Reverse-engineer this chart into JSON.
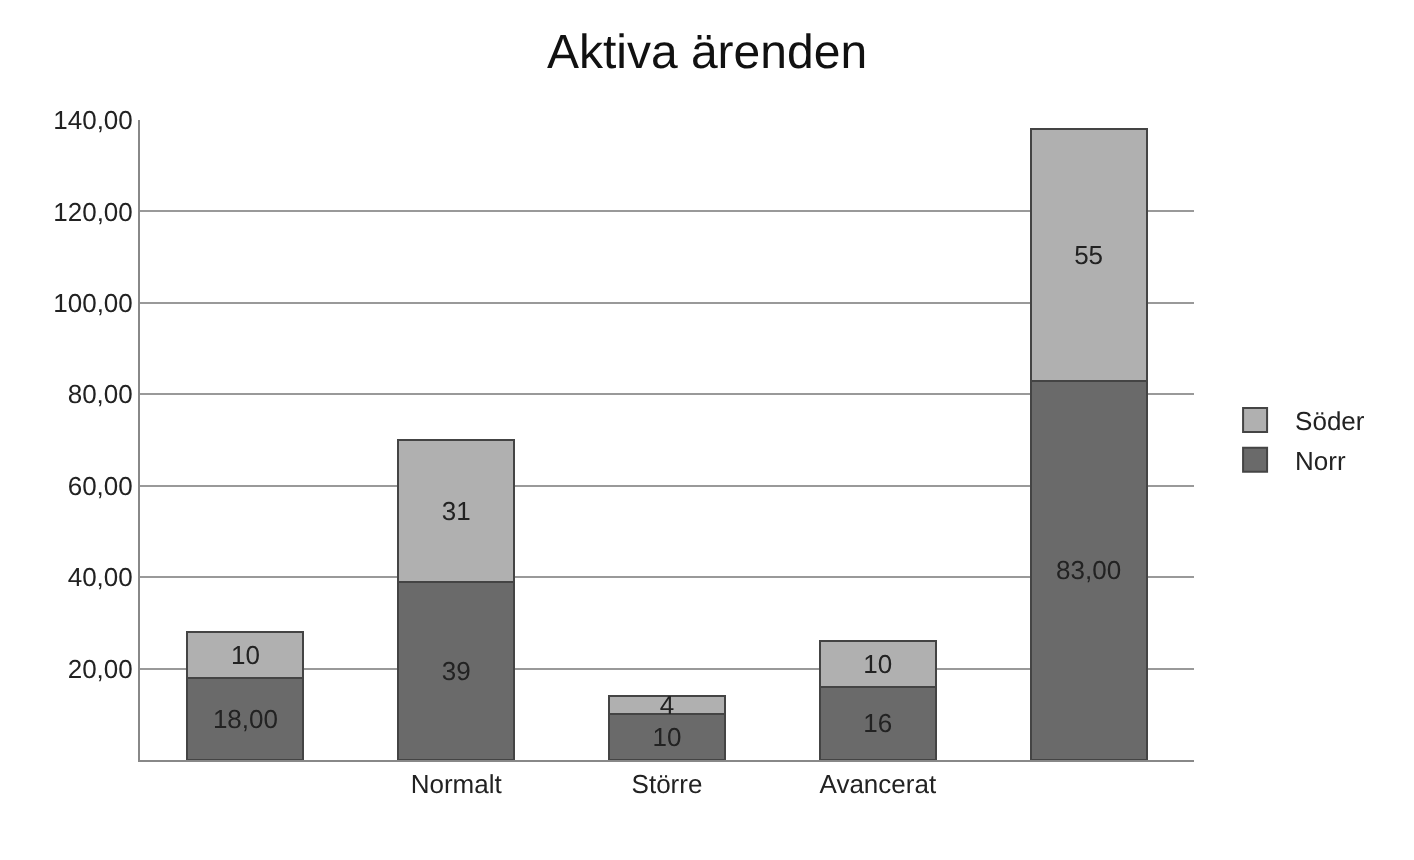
{
  "chart_data": {
    "type": "bar",
    "title": "Aktiva ärenden",
    "stacked": true,
    "categories": [
      null,
      "Normalt",
      "Större",
      "Avancerat",
      null
    ],
    "series": [
      {
        "name": "Norr",
        "color": "#6a6a6a",
        "values": [
          18,
          39,
          10,
          16,
          83
        ],
        "value_labels": [
          "18,00",
          "39",
          "10",
          "16",
          "83,00"
        ]
      },
      {
        "name": "Söder",
        "color": "#b0b0b0",
        "values": [
          10,
          31,
          4,
          10,
          55
        ],
        "value_labels": [
          "10",
          "31",
          "4",
          "10",
          "55"
        ]
      }
    ],
    "ylim": [
      0,
      140
    ],
    "yticks": [
      {
        "value": 20,
        "label": "20,00"
      },
      {
        "value": 40,
        "label": "40,00"
      },
      {
        "value": 60,
        "label": "60,00"
      },
      {
        "value": 80,
        "label": "80,00"
      },
      {
        "value": 100,
        "label": "100,00"
      },
      {
        "value": 120,
        "label": "120,00"
      },
      {
        "value": 140,
        "label": "140,00"
      }
    ],
    "grid": "y",
    "legend": "right"
  }
}
